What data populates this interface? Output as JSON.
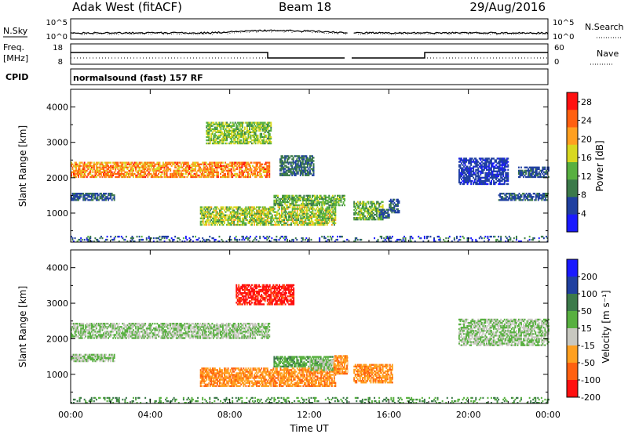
{
  "header": {
    "station": "Adak West (fitACF)",
    "beam": "Beam 18",
    "date": "29/Aug/2016"
  },
  "strips": {
    "nsky_label": "N.Sky",
    "nsearch_label": "N.Search",
    "nsky_ticks": [
      "10^5",
      "10^0"
    ],
    "nsearch_ticks": [
      "10^5",
      "10^0"
    ],
    "freq_label": "Freq.",
    "freq_unit": "[MHz]",
    "freq_ticks": [
      "18",
      "8"
    ],
    "nave_label": "Nave",
    "nave_ticks": [
      "60",
      "0"
    ],
    "cpid_label": "CPID",
    "cpid_value": "normalsound (fast) 157 RF"
  },
  "colors": {
    "power": [
      "#1a1aff",
      "#2040a0",
      "#3c7a4a",
      "#58b040",
      "#d8d820",
      "#ffa020",
      "#ff6010",
      "#ff1010"
    ],
    "velocity": [
      "#ff1010",
      "#ff6010",
      "#ffa020",
      "#c8c8c0",
      "#58b040",
      "#3c7a4a",
      "#2040a0",
      "#1a1aff"
    ]
  },
  "chart_data": [
    {
      "type": "heatmap",
      "name": "power",
      "xlabel": "Time UT",
      "ylabel": "Slant Range [km]",
      "xlim": [
        0,
        24
      ],
      "ylim": [
        180,
        4500
      ],
      "x_ticks": [
        "00:00",
        "04:00",
        "08:00",
        "12:00",
        "16:00",
        "20:00",
        "00:00"
      ],
      "y_ticks": [
        1000,
        2000,
        3000,
        4000
      ],
      "colorbar_label": "Power [dB]",
      "colorbar_ticks": [
        4,
        8,
        12,
        16,
        20,
        24,
        28
      ],
      "colorbar_range": [
        0,
        30
      ],
      "regions": [
        {
          "t": [
            0.0,
            10.0
          ],
          "r": [
            2000,
            2450
          ],
          "level": [
            0.55,
            0.9
          ]
        },
        {
          "t": [
            0.0,
            2.2
          ],
          "r": [
            1350,
            1550
          ],
          "level": [
            0.15,
            0.3
          ]
        },
        {
          "t": [
            6.8,
            10.1
          ],
          "r": [
            2950,
            3550
          ],
          "level": [
            0.35,
            0.6
          ]
        },
        {
          "t": [
            6.5,
            13.3
          ],
          "r": [
            650,
            1150
          ],
          "level": [
            0.35,
            0.65
          ]
        },
        {
          "t": [
            10.2,
            13.8
          ],
          "r": [
            1200,
            1500
          ],
          "level": [
            0.3,
            0.55
          ]
        },
        {
          "t": [
            14.1,
            15.7
          ],
          "r": [
            800,
            1300
          ],
          "level": [
            0.3,
            0.55
          ]
        },
        {
          "t": [
            10.5,
            12.2
          ],
          "r": [
            2050,
            2600
          ],
          "level": [
            0.2,
            0.35
          ]
        },
        {
          "t": [
            15.5,
            16.0
          ],
          "r": [
            850,
            1100
          ],
          "level": [
            0.15,
            0.3
          ]
        },
        {
          "t": [
            16.0,
            16.5
          ],
          "r": [
            1000,
            1400
          ],
          "level": [
            0.15,
            0.3
          ]
        },
        {
          "t": [
            19.5,
            22.0
          ],
          "r": [
            1800,
            2550
          ],
          "level": [
            0.1,
            0.2
          ]
        },
        {
          "t": [
            21.5,
            24.0
          ],
          "r": [
            1350,
            1550
          ],
          "level": [
            0.15,
            0.3
          ]
        },
        {
          "t": [
            22.5,
            24.0
          ],
          "r": [
            2000,
            2300
          ],
          "level": [
            0.15,
            0.3
          ]
        },
        {
          "t": [
            0.0,
            24.0
          ],
          "r": [
            180,
            350
          ],
          "level": [
            0.05,
            0.4
          ]
        }
      ]
    },
    {
      "type": "heatmap",
      "name": "velocity",
      "xlabel": "Time UT",
      "ylabel": "Slant Range [km]",
      "xlim": [
        0,
        24
      ],
      "ylim": [
        180,
        4500
      ],
      "x_ticks": [
        "00:00",
        "04:00",
        "08:00",
        "12:00",
        "16:00",
        "20:00",
        "00:00"
      ],
      "y_ticks": [
        1000,
        2000,
        3000,
        4000
      ],
      "colorbar_label": "Velocity [m s⁻¹]",
      "colorbar_ticks": [
        200,
        100,
        50,
        15,
        -15,
        -50,
        -100,
        -200
      ],
      "colorbar_range": [
        -250,
        250
      ],
      "regions": [
        {
          "t": [
            0.0,
            10.0
          ],
          "r": [
            2000,
            2450
          ],
          "level": [
            0.45,
            0.55
          ]
        },
        {
          "t": [
            0.0,
            2.2
          ],
          "r": [
            1350,
            1550
          ],
          "level": [
            0.45,
            0.55
          ]
        },
        {
          "t": [
            8.3,
            11.2
          ],
          "r": [
            2950,
            3500
          ],
          "level": [
            0.0,
            0.15
          ]
        },
        {
          "t": [
            6.5,
            13.3
          ],
          "r": [
            650,
            1150
          ],
          "level": [
            0.2,
            0.35
          ]
        },
        {
          "t": [
            10.2,
            13.2
          ],
          "r": [
            1200,
            1500
          ],
          "level": [
            0.55,
            0.65
          ]
        },
        {
          "t": [
            13.2,
            14.0
          ],
          "r": [
            1000,
            1500
          ],
          "level": [
            0.2,
            0.35
          ]
        },
        {
          "t": [
            14.1,
            16.2
          ],
          "r": [
            750,
            1250
          ],
          "level": [
            0.2,
            0.35
          ]
        },
        {
          "t": [
            12.0,
            13.2
          ],
          "r": [
            1100,
            1400
          ],
          "level": [
            0.45,
            0.55
          ]
        },
        {
          "t": [
            19.5,
            24.0
          ],
          "r": [
            1800,
            2550
          ],
          "level": [
            0.45,
            0.55
          ]
        },
        {
          "t": [
            0.0,
            24.0
          ],
          "r": [
            180,
            350
          ],
          "level": [
            0.55,
            0.7
          ]
        }
      ]
    }
  ]
}
